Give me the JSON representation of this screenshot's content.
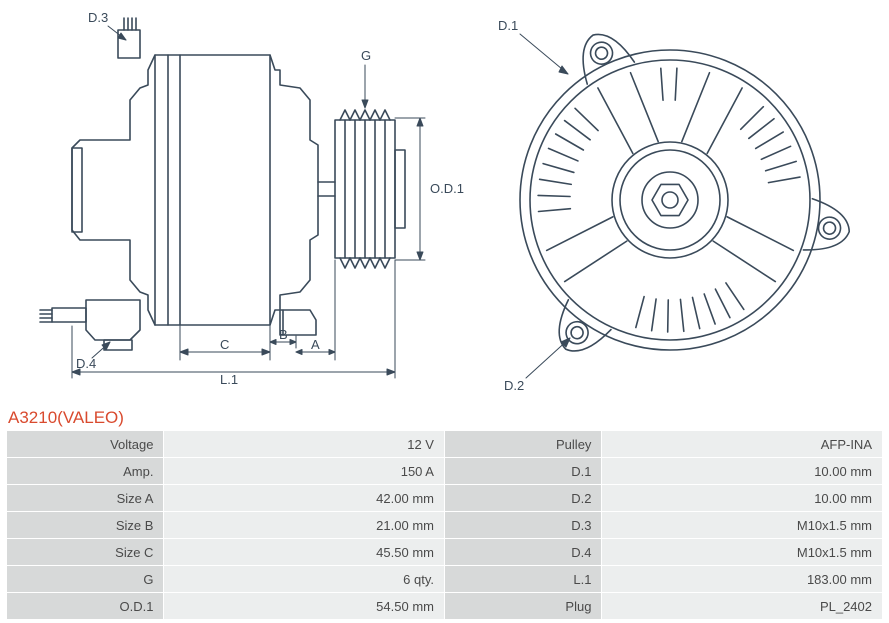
{
  "part": {
    "title": "A3210(VALEO)",
    "title_color": "#d94a2e"
  },
  "table": {
    "row_bg": "#eceeee",
    "label_bg": "#d7d9d9",
    "text_color": "#4a4a4a",
    "left": [
      {
        "label": "Voltage",
        "value": "12 V"
      },
      {
        "label": "Amp.",
        "value": "150 A"
      },
      {
        "label": "Size A",
        "value": "42.00 mm"
      },
      {
        "label": "Size B",
        "value": "21.00 mm"
      },
      {
        "label": "Size C",
        "value": "45.50 mm"
      },
      {
        "label": "G",
        "value": "6 qty."
      },
      {
        "label": "O.D.1",
        "value": "54.50 mm"
      }
    ],
    "right": [
      {
        "label": "Pulley",
        "value": "AFP-INA"
      },
      {
        "label": "D.1",
        "value": "10.00 mm"
      },
      {
        "label": "D.2",
        "value": "10.00 mm"
      },
      {
        "label": "D.3",
        "value": "M10x1.5 mm"
      },
      {
        "label": "D.4",
        "value": "M10x1.5 mm"
      },
      {
        "label": "L.1",
        "value": "183.00 mm"
      },
      {
        "label": "Plug",
        "value": "PL_2402"
      }
    ]
  },
  "diagram": {
    "stroke": "#3a4a5a",
    "stroke_width": 1.5,
    "side_view": {
      "labels": {
        "D3": "D.3",
        "D4": "D.4",
        "G": "G",
        "OD1": "O.D.1",
        "C": "C",
        "B": "B",
        "A": "A",
        "L1": "L.1"
      }
    },
    "front_view": {
      "labels": {
        "D1": "D.1",
        "D2": "D.2"
      }
    }
  }
}
